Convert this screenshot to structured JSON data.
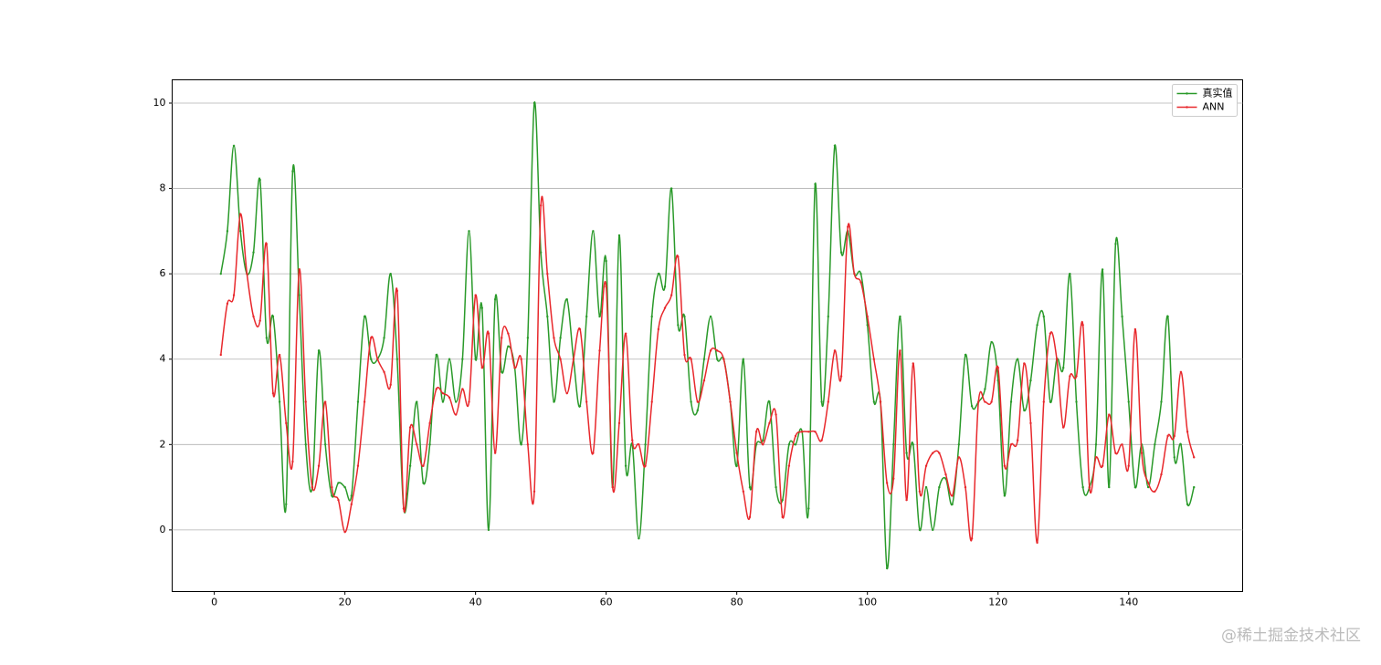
{
  "chart_data": {
    "type": "line",
    "x": [
      1,
      2,
      3,
      4,
      5,
      6,
      7,
      8,
      9,
      10,
      11,
      12,
      13,
      14,
      15,
      16,
      17,
      18,
      19,
      20,
      21,
      22,
      23,
      24,
      25,
      26,
      27,
      28,
      29,
      30,
      31,
      32,
      33,
      34,
      35,
      36,
      37,
      38,
      39,
      40,
      41,
      42,
      43,
      44,
      45,
      46,
      47,
      48,
      49,
      50,
      51,
      52,
      53,
      54,
      55,
      56,
      57,
      58,
      59,
      60,
      61,
      62,
      63,
      64,
      65,
      66,
      67,
      68,
      69,
      70,
      71,
      72,
      73,
      74,
      75,
      76,
      77,
      78,
      79,
      80,
      81,
      82,
      83,
      84,
      85,
      86,
      87,
      88,
      89,
      90,
      91,
      92,
      93,
      94,
      95,
      96,
      97,
      98,
      99,
      100,
      101,
      102,
      103,
      104,
      105,
      106,
      107,
      108,
      109,
      110,
      111,
      112,
      113,
      114,
      115,
      116,
      117,
      118,
      119,
      120,
      121,
      122,
      123,
      124,
      125,
      126,
      127,
      128,
      129,
      130,
      131,
      132,
      133,
      134,
      135,
      136,
      137,
      138,
      139,
      140,
      141,
      142,
      143,
      144,
      145,
      146,
      147,
      148,
      149,
      150
    ],
    "series": [
      {
        "name": "真实值",
        "color": "#2a9a2a",
        "values": [
          6.0,
          7.0,
          9.0,
          7.0,
          6.0,
          6.5,
          8.2,
          4.5,
          5.0,
          3.0,
          0.6,
          8.4,
          5.5,
          2.0,
          1.0,
          4.2,
          2.0,
          0.8,
          1.1,
          1.0,
          0.8,
          3.0,
          5.0,
          4.0,
          4.0,
          4.5,
          6.0,
          4.0,
          0.5,
          1.5,
          3.0,
          1.1,
          2.0,
          4.1,
          3.0,
          4.0,
          3.0,
          4.0,
          7.0,
          4.0,
          5.2,
          0.0,
          5.4,
          3.7,
          4.3,
          3.8,
          2.0,
          4.5,
          10.0,
          6.5,
          5.0,
          3.0,
          4.5,
          5.4,
          4.0,
          2.9,
          5.0,
          7.0,
          5.0,
          6.3,
          1.0,
          6.9,
          1.5,
          2.0,
          -0.2,
          2.0,
          5.0,
          6.0,
          5.7,
          8.0,
          4.8,
          5.0,
          3.0,
          2.8,
          4.0,
          5.0,
          4.0,
          4.0,
          3.0,
          1.5,
          4.0,
          1.0,
          2.0,
          2.1,
          3.0,
          1.0,
          0.7,
          2.0,
          2.0,
          2.3,
          0.5,
          8.1,
          3.0,
          5.0,
          9.0,
          6.5,
          7.0,
          6.0,
          6.0,
          4.8,
          3.0,
          3.0,
          -0.9,
          2.0,
          5.0,
          1.8,
          2.0,
          0.0,
          1.0,
          0.0,
          1.0,
          1.2,
          0.6,
          2.0,
          4.1,
          2.9,
          3.0,
          3.3,
          4.4,
          3.5,
          0.8,
          3.0,
          4.0,
          2.8,
          3.5,
          4.8,
          5.0,
          3.0,
          4.0,
          3.8,
          6.0,
          3.0,
          1.0,
          1.0,
          2.0,
          6.1,
          1.0,
          6.7,
          5.0,
          3.0,
          1.0,
          2.0,
          1.0,
          2.0,
          3.0,
          5.0,
          1.7,
          2.0,
          0.6,
          1.0
        ]
      },
      {
        "name": "ANN",
        "color": "#e8282c",
        "values": [
          4.1,
          5.3,
          5.5,
          7.4,
          6.0,
          5.0,
          4.9,
          6.7,
          3.2,
          4.1,
          2.5,
          1.6,
          6.1,
          3.0,
          1.0,
          1.5,
          3.0,
          1.0,
          0.7,
          -0.05,
          0.6,
          1.5,
          3.0,
          4.5,
          4.0,
          3.7,
          3.4,
          5.6,
          0.5,
          2.4,
          2.0,
          1.5,
          2.5,
          3.3,
          3.2,
          3.1,
          2.7,
          3.3,
          3.0,
          5.5,
          3.8,
          4.6,
          1.8,
          4.5,
          4.6,
          3.8,
          4.0,
          2.0,
          0.9,
          7.6,
          6.0,
          4.5,
          4.0,
          3.2,
          4.0,
          4.7,
          3.0,
          1.8,
          4.2,
          5.7,
          1.0,
          2.5,
          4.6,
          2.1,
          2.0,
          1.5,
          3.0,
          4.7,
          5.2,
          5.5,
          6.4,
          4.1,
          4.0,
          3.0,
          3.5,
          4.2,
          4.2,
          4.0,
          3.0,
          1.8,
          0.9,
          0.3,
          2.3,
          2.0,
          2.5,
          2.7,
          0.3,
          1.5,
          2.2,
          2.3,
          2.3,
          2.3,
          2.1,
          3.0,
          4.2,
          3.6,
          7.1,
          6.0,
          5.8,
          5.0,
          4.0,
          3.0,
          1.1,
          1.2,
          4.2,
          0.7,
          3.9,
          0.9,
          1.5,
          1.8,
          1.8,
          1.3,
          0.8,
          1.7,
          1.0,
          -0.2,
          3.0,
          3.0,
          3.0,
          3.8,
          1.5,
          2.0,
          2.1,
          3.9,
          2.5,
          -0.3,
          3.0,
          4.6,
          4.0,
          2.4,
          3.6,
          3.6,
          4.8,
          1.0,
          1.7,
          1.5,
          2.7,
          1.8,
          2.0,
          1.5,
          4.7,
          1.8,
          1.1,
          0.9,
          1.3,
          2.2,
          2.2,
          3.7,
          2.3,
          1.7
        ]
      }
    ],
    "xlim": [
      -6.45,
      157.45
    ],
    "ylim": [
      -1.445,
      10.545
    ],
    "xticks": [
      0,
      20,
      40,
      60,
      80,
      100,
      120,
      140
    ],
    "yticks": [
      0,
      2,
      4,
      6,
      8,
      10
    ],
    "grid": "y",
    "legend": "upper right"
  },
  "watermark": "@稀土掘金技术社区"
}
